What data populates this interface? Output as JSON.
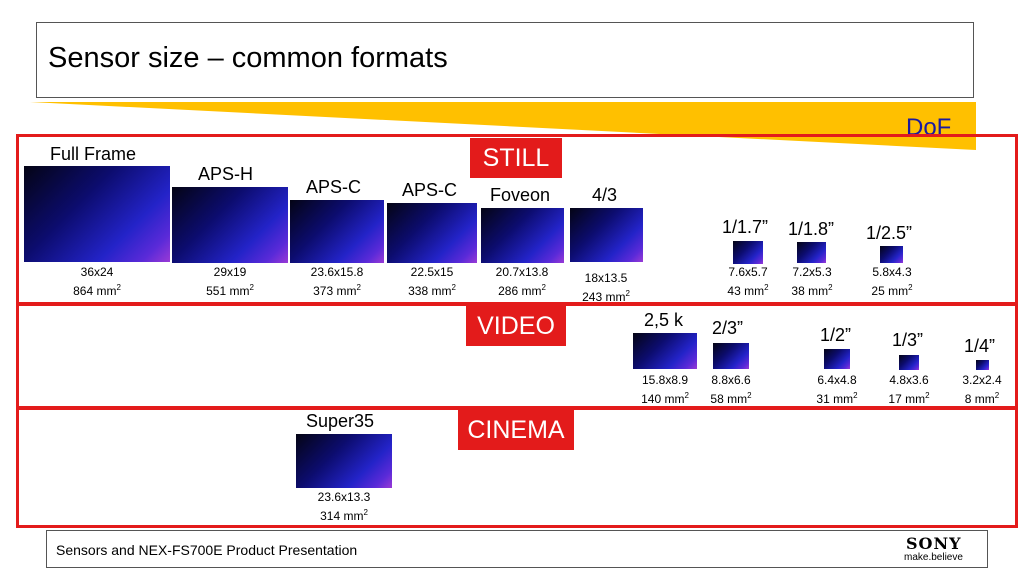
{
  "title": "Sensor size – common formats",
  "dof_label": "DoF",
  "sections": {
    "still": "STILL",
    "video": "VIDEO",
    "cinema": "CINEMA"
  },
  "still": [
    {
      "name": "Full Frame",
      "dims": "36x24",
      "area": "864 mm"
    },
    {
      "name": "APS-H",
      "dims": "29x19",
      "area": "551 mm"
    },
    {
      "name": "APS-C",
      "dims": "23.6x15.8",
      "area": "373 mm"
    },
    {
      "name": "APS-C",
      "dims": "22.5x15",
      "area": "338 mm"
    },
    {
      "name": "Foveon",
      "dims": "20.7x13.8",
      "area": "286 mm"
    },
    {
      "name": "4/3",
      "dims": "18x13.5",
      "area": "243 mm"
    },
    {
      "name": "1/1.7”",
      "dims": "7.6x5.7",
      "area": "43 mm"
    },
    {
      "name": "1/1.8”",
      "dims": "7.2x5.3",
      "area": "38 mm"
    },
    {
      "name": "1/2.5”",
      "dims": "5.8x4.3",
      "area": "25 mm"
    }
  ],
  "video": [
    {
      "name": "2,5 k",
      "dims": "15.8x8.9",
      "area": "140 mm"
    },
    {
      "name": "2/3”",
      "dims": "8.8x6.6",
      "area": "58 mm"
    },
    {
      "name": "1/2”",
      "dims": "6.4x4.8",
      "area": "31 mm"
    },
    {
      "name": "1/3”",
      "dims": "4.8x3.6",
      "area": "17 mm"
    },
    {
      "name": "1/4”",
      "dims": "3.2x2.4",
      "area": "8 mm"
    }
  ],
  "cinema": [
    {
      "name": "Super35",
      "dims": "23.6x13.3",
      "area": "314 mm"
    }
  ],
  "area_superscript": "2",
  "footer": "Sensors and NEX-FS700E Product Presentation",
  "logo": {
    "brand": "SONY",
    "tagline": "make.believe"
  },
  "colors": {
    "section_border": "#e31b1b",
    "dof_wedge": "#ffc000",
    "dof_text": "#1a1aa0"
  }
}
